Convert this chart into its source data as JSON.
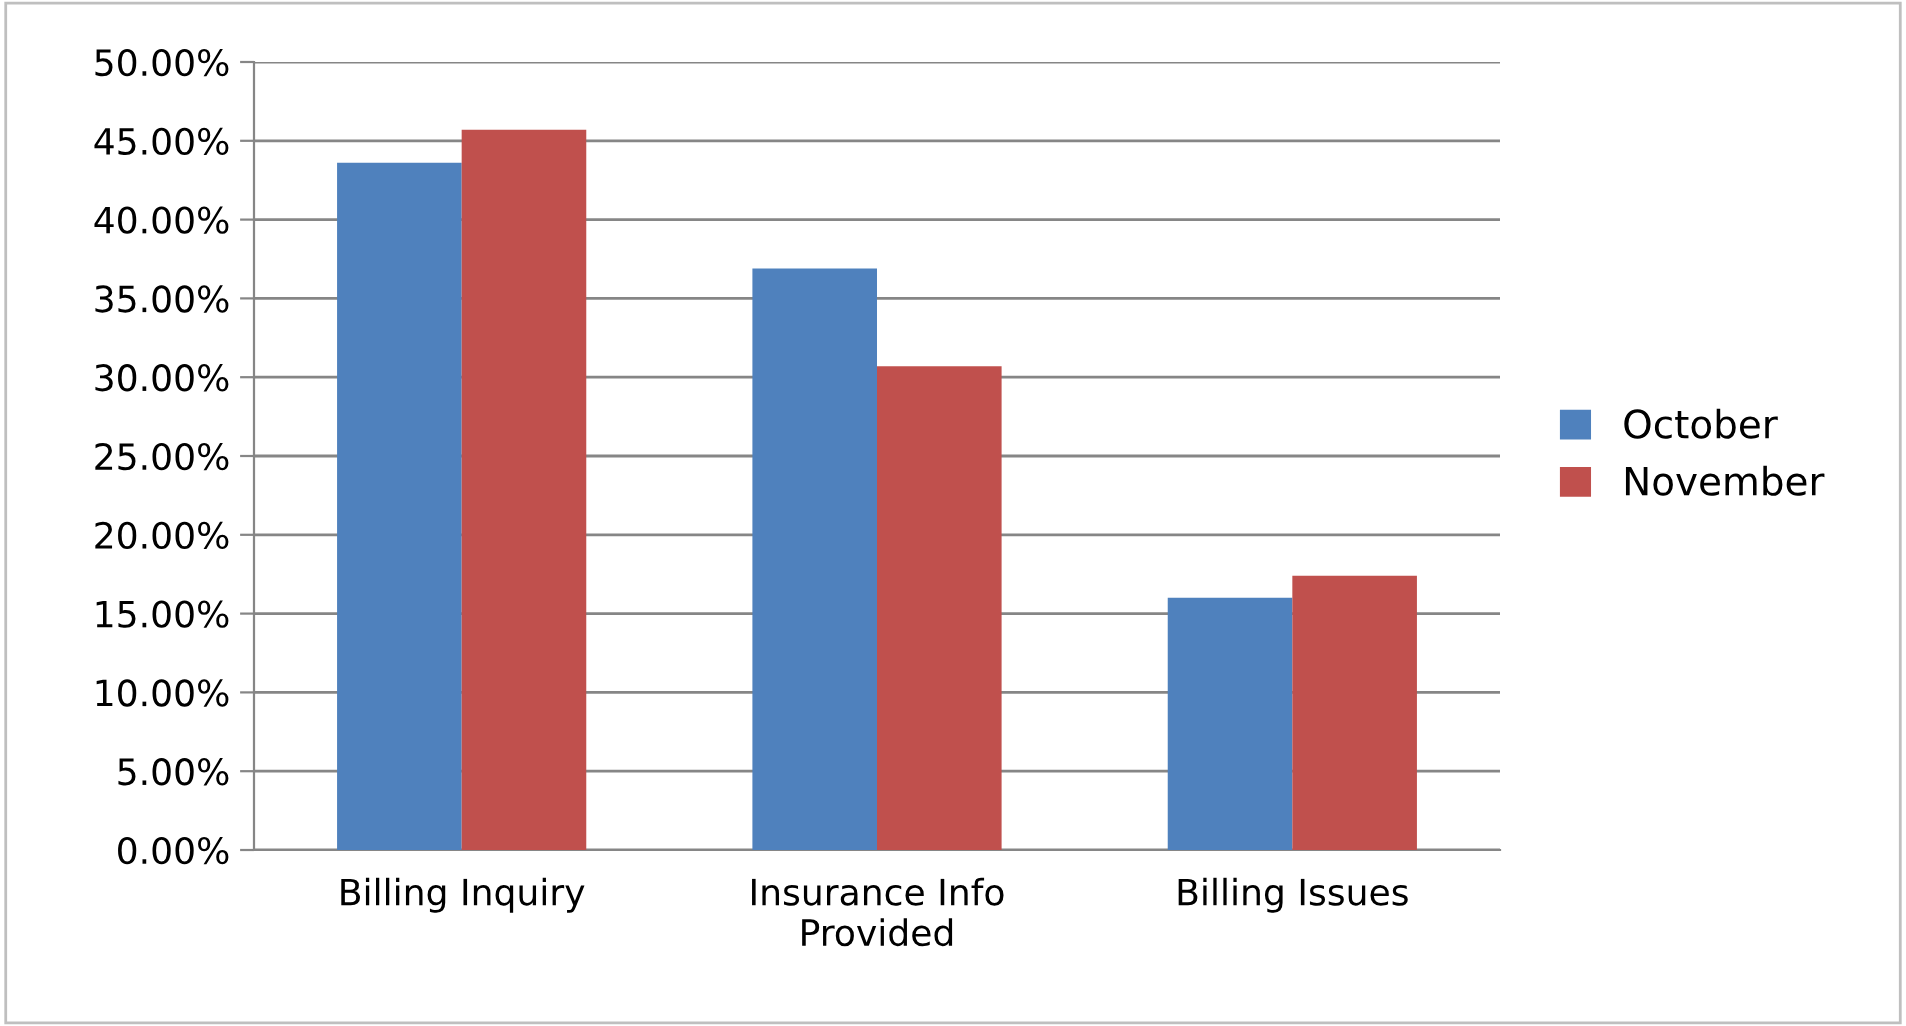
{
  "chart_data": {
    "type": "bar",
    "categories": [
      "Billing Inquiry",
      "Insurance Info\nProvided",
      "Billing Issues"
    ],
    "series": [
      {
        "name": "October",
        "color": "#4f81bd",
        "values": [
          43.6,
          36.9,
          16.0
        ]
      },
      {
        "name": "November",
        "color": "#c0504d",
        "values": [
          45.7,
          30.7,
          17.4
        ]
      }
    ],
    "ylim": [
      0,
      50
    ],
    "yticks": [
      {
        "value": 0,
        "label": "0.00%"
      },
      {
        "value": 5,
        "label": "5.00%"
      },
      {
        "value": 10,
        "label": "10.00%"
      },
      {
        "value": 15,
        "label": "15.00%"
      },
      {
        "value": 20,
        "label": "20.00%"
      },
      {
        "value": 25,
        "label": "25.00%"
      },
      {
        "value": 30,
        "label": "30.00%"
      },
      {
        "value": 35,
        "label": "35.00%"
      },
      {
        "value": 40,
        "label": "40.00%"
      },
      {
        "value": 45,
        "label": "45.00%"
      },
      {
        "value": 50,
        "label": "50.00%"
      }
    ],
    "grid": "y",
    "legend": "right"
  }
}
